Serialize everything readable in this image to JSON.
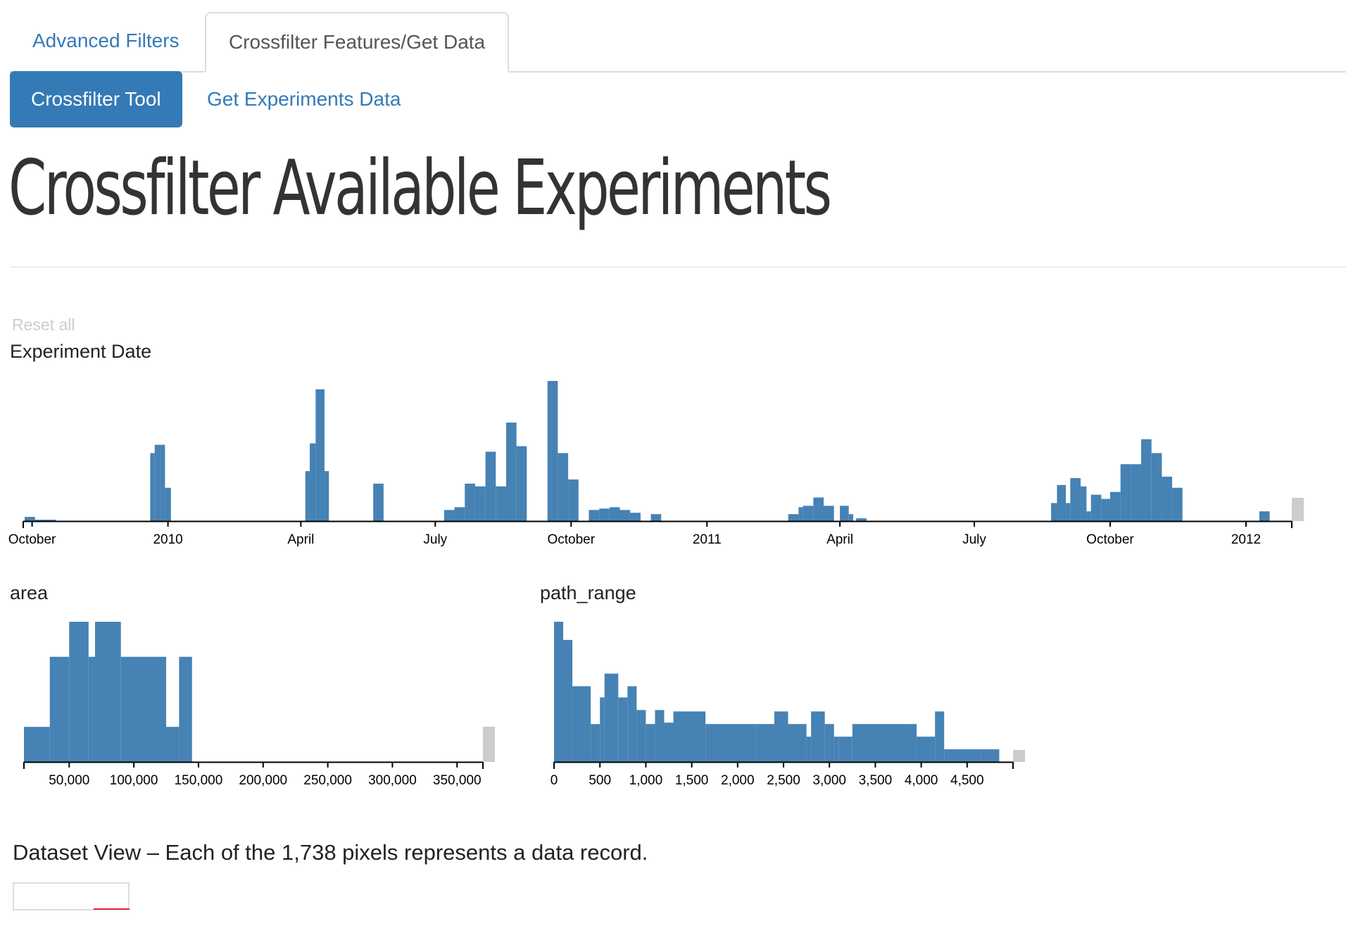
{
  "tabs": [
    {
      "label": "Advanced Filters",
      "active": false
    },
    {
      "label": "Crossfilter Features/Get Data",
      "active": true
    }
  ],
  "pills": [
    {
      "label": "Crossfilter Tool",
      "active": true
    },
    {
      "label": "Get Experiments Data",
      "active": false
    }
  ],
  "page_title": "Crossfilter Available Experiments",
  "reset_all_label": "Reset all",
  "colors": {
    "bar": "#4682b4",
    "brush_handle": "#cccccc",
    "link": "#337ab7",
    "dataset_marker": "#e8262b"
  },
  "dataset_caption": "Dataset View – Each of the 1,738 pixels represents a data record.",
  "chart_data": [
    {
      "type": "bar",
      "title": "Experiment Date",
      "x_kind": "date",
      "xlim": [
        "2009-09-25",
        "2012-02-01"
      ],
      "tick_labels": [
        {
          "date": "2009-10-01",
          "label": "October"
        },
        {
          "date": "2010-01-01",
          "label": "2010"
        },
        {
          "date": "2010-04-01",
          "label": "April"
        },
        {
          "date": "2010-07-01",
          "label": "July"
        },
        {
          "date": "2010-10-01",
          "label": "October"
        },
        {
          "date": "2011-01-01",
          "label": "2011"
        },
        {
          "date": "2011-04-01",
          "label": "April"
        },
        {
          "date": "2011-07-01",
          "label": "July"
        },
        {
          "date": "2011-10-01",
          "label": "October"
        },
        {
          "date": "2012-01-01",
          "label": "2012"
        }
      ],
      "ylim": [
        0,
        100
      ],
      "bars": [
        {
          "start": "2009-09-26",
          "end": "2009-10-03",
          "value": 3
        },
        {
          "start": "2009-10-03",
          "end": "2009-10-10",
          "value": 1
        },
        {
          "start": "2009-10-10",
          "end": "2009-10-17",
          "value": 1
        },
        {
          "start": "2009-12-20",
          "end": "2009-12-23",
          "value": 49
        },
        {
          "start": "2009-12-23",
          "end": "2009-12-27",
          "value": 55
        },
        {
          "start": "2009-12-27",
          "end": "2009-12-30",
          "value": 55
        },
        {
          "start": "2009-12-30",
          "end": "2010-01-03",
          "value": 24
        },
        {
          "start": "2010-04-04",
          "end": "2010-04-07",
          "value": 36
        },
        {
          "start": "2010-04-07",
          "end": "2010-04-11",
          "value": 56
        },
        {
          "start": "2010-04-11",
          "end": "2010-04-17",
          "value": 95
        },
        {
          "start": "2010-04-17",
          "end": "2010-04-20",
          "value": 36
        },
        {
          "start": "2010-05-20",
          "end": "2010-05-27",
          "value": 27
        },
        {
          "start": "2010-07-07",
          "end": "2010-07-14",
          "value": 8
        },
        {
          "start": "2010-07-14",
          "end": "2010-07-21",
          "value": 10
        },
        {
          "start": "2010-07-21",
          "end": "2010-07-28",
          "value": 27
        },
        {
          "start": "2010-07-28",
          "end": "2010-08-04",
          "value": 25
        },
        {
          "start": "2010-08-04",
          "end": "2010-08-11",
          "value": 50
        },
        {
          "start": "2010-08-11",
          "end": "2010-08-18",
          "value": 25
        },
        {
          "start": "2010-08-18",
          "end": "2010-08-25",
          "value": 71
        },
        {
          "start": "2010-08-25",
          "end": "2010-09-01",
          "value": 54
        },
        {
          "start": "2010-09-15",
          "end": "2010-09-22",
          "value": 101
        },
        {
          "start": "2010-09-22",
          "end": "2010-09-29",
          "value": 49
        },
        {
          "start": "2010-09-29",
          "end": "2010-10-06",
          "value": 30
        },
        {
          "start": "2010-10-13",
          "end": "2010-10-20",
          "value": 8
        },
        {
          "start": "2010-10-20",
          "end": "2010-10-27",
          "value": 9
        },
        {
          "start": "2010-10-27",
          "end": "2010-11-03",
          "value": 10
        },
        {
          "start": "2010-11-03",
          "end": "2010-11-10",
          "value": 8
        },
        {
          "start": "2010-11-10",
          "end": "2010-11-17",
          "value": 6
        },
        {
          "start": "2010-11-24",
          "end": "2010-12-01",
          "value": 5
        },
        {
          "start": "2011-02-25",
          "end": "2011-03-04",
          "value": 5
        },
        {
          "start": "2011-03-04",
          "end": "2011-03-07",
          "value": 10
        },
        {
          "start": "2011-03-07",
          "end": "2011-03-11",
          "value": 11
        },
        {
          "start": "2011-03-11",
          "end": "2011-03-14",
          "value": 11
        },
        {
          "start": "2011-03-14",
          "end": "2011-03-21",
          "value": 17
        },
        {
          "start": "2011-03-21",
          "end": "2011-03-28",
          "value": 11
        },
        {
          "start": "2011-04-01",
          "end": "2011-04-07",
          "value": 11
        },
        {
          "start": "2011-04-07",
          "end": "2011-04-10",
          "value": 5
        },
        {
          "start": "2011-04-12",
          "end": "2011-04-19",
          "value": 2
        },
        {
          "start": "2011-08-22",
          "end": "2011-08-26",
          "value": 13
        },
        {
          "start": "2011-08-26",
          "end": "2011-09-01",
          "value": 26
        },
        {
          "start": "2011-09-01",
          "end": "2011-09-04",
          "value": 13
        },
        {
          "start": "2011-09-04",
          "end": "2011-09-11",
          "value": 31
        },
        {
          "start": "2011-09-11",
          "end": "2011-09-15",
          "value": 25
        },
        {
          "start": "2011-09-15",
          "end": "2011-09-18",
          "value": 7
        },
        {
          "start": "2011-09-18",
          "end": "2011-09-25",
          "value": 19
        },
        {
          "start": "2011-09-25",
          "end": "2011-10-01",
          "value": 16
        },
        {
          "start": "2011-10-01",
          "end": "2011-10-08",
          "value": 21
        },
        {
          "start": "2011-10-08",
          "end": "2011-10-15",
          "value": 41
        },
        {
          "start": "2011-10-15",
          "end": "2011-10-22",
          "value": 41
        },
        {
          "start": "2011-10-22",
          "end": "2011-10-29",
          "value": 59
        },
        {
          "start": "2011-10-29",
          "end": "2011-11-05",
          "value": 49
        },
        {
          "start": "2011-11-05",
          "end": "2011-11-12",
          "value": 32
        },
        {
          "start": "2011-11-12",
          "end": "2011-11-19",
          "value": 24
        },
        {
          "start": "2012-01-10",
          "end": "2012-01-17",
          "value": 7
        }
      ]
    },
    {
      "type": "bar",
      "title": "area",
      "xlim": [
        15000,
        370000
      ],
      "ticks": [
        50000,
        100000,
        150000,
        200000,
        250000,
        300000,
        350000
      ],
      "tick_labels": [
        "50,000",
        "100,000",
        "150,000",
        "200,000",
        "250,000",
        "300,000",
        "350,000"
      ],
      "ylim": [
        0,
        100
      ],
      "bars": [
        {
          "start": 15000,
          "end": 35000,
          "value": 25
        },
        {
          "start": 35000,
          "end": 50000,
          "value": 75
        },
        {
          "start": 50000,
          "end": 65000,
          "value": 100
        },
        {
          "start": 65000,
          "end": 70000,
          "value": 75
        },
        {
          "start": 70000,
          "end": 90000,
          "value": 100
        },
        {
          "start": 90000,
          "end": 125000,
          "value": 75
        },
        {
          "start": 125000,
          "end": 135000,
          "value": 25
        },
        {
          "start": 135000,
          "end": 145000,
          "value": 75
        }
      ]
    },
    {
      "type": "bar",
      "title": "path_range",
      "xlim": [
        0,
        5000
      ],
      "ticks": [
        0,
        500,
        1000,
        1500,
        2000,
        2500,
        3000,
        3500,
        4000,
        4500
      ],
      "tick_labels": [
        "0",
        "500",
        "1,000",
        "1,500",
        "2,000",
        "2,500",
        "3,000",
        "3,500",
        "4,000",
        "4,500"
      ],
      "ylim": [
        0,
        100
      ],
      "bars": [
        {
          "start": 0,
          "end": 100,
          "value": 100
        },
        {
          "start": 100,
          "end": 200,
          "value": 87
        },
        {
          "start": 200,
          "end": 400,
          "value": 54
        },
        {
          "start": 400,
          "end": 500,
          "value": 27
        },
        {
          "start": 500,
          "end": 550,
          "value": 46
        },
        {
          "start": 550,
          "end": 700,
          "value": 63
        },
        {
          "start": 700,
          "end": 800,
          "value": 46
        },
        {
          "start": 800,
          "end": 900,
          "value": 54
        },
        {
          "start": 900,
          "end": 1000,
          "value": 37
        },
        {
          "start": 1000,
          "end": 1100,
          "value": 27
        },
        {
          "start": 1100,
          "end": 1200,
          "value": 37
        },
        {
          "start": 1200,
          "end": 1300,
          "value": 28
        },
        {
          "start": 1300,
          "end": 1650,
          "value": 36
        },
        {
          "start": 1650,
          "end": 2200,
          "value": 27
        },
        {
          "start": 2200,
          "end": 2400,
          "value": 27
        },
        {
          "start": 2400,
          "end": 2550,
          "value": 36
        },
        {
          "start": 2550,
          "end": 2750,
          "value": 27
        },
        {
          "start": 2750,
          "end": 2800,
          "value": 18
        },
        {
          "start": 2800,
          "end": 2950,
          "value": 36
        },
        {
          "start": 2950,
          "end": 3050,
          "value": 27
        },
        {
          "start": 3050,
          "end": 3100,
          "value": 18
        },
        {
          "start": 3100,
          "end": 3250,
          "value": 18
        },
        {
          "start": 3250,
          "end": 3850,
          "value": 27
        },
        {
          "start": 3850,
          "end": 3950,
          "value": 27
        },
        {
          "start": 3950,
          "end": 4150,
          "value": 18
        },
        {
          "start": 4150,
          "end": 4250,
          "value": 36
        },
        {
          "start": 4250,
          "end": 4650,
          "value": 9
        },
        {
          "start": 4650,
          "end": 4850,
          "value": 9
        }
      ]
    }
  ]
}
